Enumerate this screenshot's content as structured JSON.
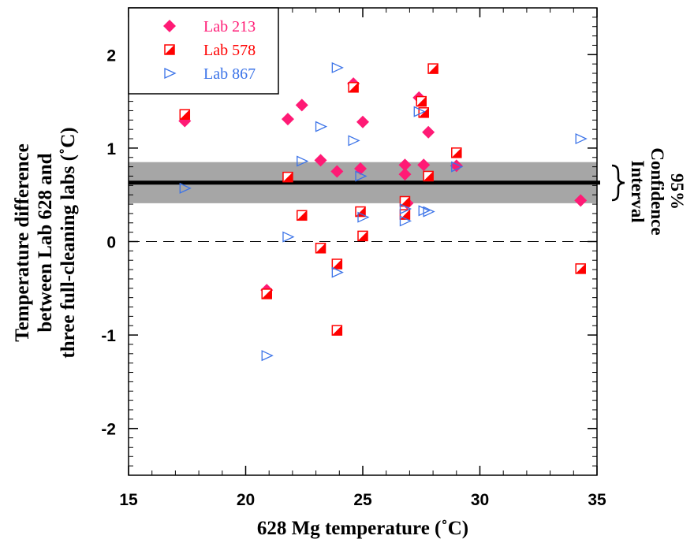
{
  "chart_data": {
    "type": "scatter",
    "xlabel": "628 Mg temperature (˚C)",
    "ylabel_lines": [
      "Temperature difference",
      "between Lab 628 and",
      "three full-cleaning labs (˚C)"
    ],
    "xlim": [
      15,
      35
    ],
    "ylim": [
      -2.5,
      2.5
    ],
    "x_ticks": [
      15,
      20,
      25,
      30,
      35
    ],
    "y_ticks": [
      -2,
      -1,
      0,
      1,
      2
    ],
    "x_tick_labels": [
      "15",
      "20",
      "25",
      "30",
      "35"
    ],
    "y_tick_labels": [
      "-2",
      "-1",
      "0",
      "1",
      "2"
    ],
    "mean_line": 0.63,
    "zero_line": 0,
    "confidence_band": [
      0.41,
      0.85
    ],
    "confidence_label_lines": [
      "95%",
      "Confidence",
      "Interval"
    ],
    "legend_position": "top-left",
    "series": [
      {
        "name": "Lab 213",
        "marker": "diamond",
        "color": "#ff1a75",
        "points": [
          [
            17.4,
            1.29
          ],
          [
            21.8,
            1.31
          ],
          [
            22.4,
            1.46
          ],
          [
            23.2,
            0.87
          ],
          [
            23.9,
            0.75
          ],
          [
            24.6,
            1.69
          ],
          [
            24.9,
            0.78
          ],
          [
            25.0,
            1.28
          ],
          [
            26.8,
            0.82
          ],
          [
            26.8,
            0.72
          ],
          [
            26.9,
            0.41
          ],
          [
            27.4,
            1.54
          ],
          [
            27.6,
            0.82
          ],
          [
            27.8,
            1.17
          ],
          [
            29.0,
            0.81
          ],
          [
            34.3,
            0.44
          ],
          [
            20.9,
            -0.52
          ]
        ]
      },
      {
        "name": "Lab 578",
        "marker": "half-filled-square",
        "color": "#ff0000",
        "points": [
          [
            17.4,
            1.36
          ],
          [
            20.9,
            -0.56
          ],
          [
            21.8,
            0.69
          ],
          [
            22.4,
            0.28
          ],
          [
            23.2,
            -0.07
          ],
          [
            23.9,
            -0.24
          ],
          [
            23.9,
            -0.95
          ],
          [
            24.6,
            1.65
          ],
          [
            24.9,
            0.32
          ],
          [
            25.0,
            0.06
          ],
          [
            26.8,
            0.43
          ],
          [
            26.8,
            0.29
          ],
          [
            27.5,
            1.5
          ],
          [
            27.6,
            1.38
          ],
          [
            27.8,
            0.7
          ],
          [
            28.0,
            1.85
          ],
          [
            29.0,
            0.95
          ],
          [
            34.3,
            -0.29
          ]
        ]
      },
      {
        "name": "Lab 867",
        "marker": "open-triangle-right",
        "color": "#3b73e8",
        "points": [
          [
            17.4,
            0.57
          ],
          [
            21.8,
            0.05
          ],
          [
            20.9,
            -1.22
          ],
          [
            22.4,
            0.86
          ],
          [
            23.2,
            1.23
          ],
          [
            23.9,
            1.86
          ],
          [
            23.9,
            -0.33
          ],
          [
            24.6,
            1.08
          ],
          [
            24.9,
            0.7
          ],
          [
            25.0,
            0.26
          ],
          [
            26.8,
            0.35
          ],
          [
            26.8,
            0.22
          ],
          [
            27.4,
            1.39
          ],
          [
            27.6,
            0.33
          ],
          [
            27.8,
            0.32
          ],
          [
            29.0,
            0.8
          ],
          [
            34.3,
            1.1
          ]
        ]
      }
    ]
  }
}
